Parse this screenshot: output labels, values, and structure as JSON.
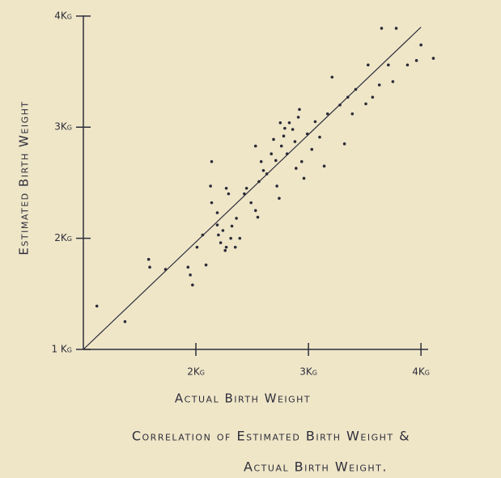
{
  "chart_data": {
    "type": "scatter",
    "title": [
      "Correlation of Estimated Birth Weight &",
      "Actual Birth Weight."
    ],
    "xlabel": "Actual Birth Weight",
    "ylabel": "Estimated Birth Weight",
    "xlim": [
      1,
      4.15
    ],
    "ylim": [
      1,
      4.05
    ],
    "xticks": [
      {
        "value": 2,
        "label": "2Kg"
      },
      {
        "value": 3,
        "label": "3Kg"
      },
      {
        "value": 4,
        "label": "4Kg"
      }
    ],
    "yticks": [
      {
        "value": 1,
        "label": "1 Kg"
      },
      {
        "value": 2,
        "label": "2Kg"
      },
      {
        "value": 3,
        "label": "3Kg"
      },
      {
        "value": 4,
        "label": "4Kg"
      }
    ],
    "reference_line": {
      "x": [
        1,
        4
      ],
      "y": [
        1,
        3.9
      ]
    },
    "color": "#2b2b38",
    "x": [
      1.12,
      1.37,
      1.58,
      1.59,
      1.73,
      1.93,
      1.95,
      1.97,
      2.09,
      2.13,
      2.14,
      2.19,
      2.2,
      2.22,
      2.24,
      2.26,
      2.27,
      2.31,
      2.32,
      2.35,
      2.36,
      2.19,
      2.27,
      2.29,
      2.43,
      2.45,
      2.49,
      2.53,
      2.55,
      2.56,
      2.58,
      2.6,
      2.63,
      2.67,
      2.69,
      2.71,
      2.72,
      2.74,
      2.76,
      2.78,
      2.79,
      2.81,
      2.83,
      2.86,
      2.88,
      2.91,
      2.92,
      2.94,
      2.96,
      2.99,
      3.03,
      3.06,
      3.1,
      3.14,
      3.17,
      3.21,
      3.28,
      3.32,
      3.35,
      3.39,
      3.42,
      3.51,
      3.53,
      3.57,
      3.63,
      3.65,
      3.71,
      3.75,
      3.78,
      3.88,
      3.96,
      4.0,
      4.11,
      2.14,
      2.39,
      2.53,
      2.75,
      2.89,
      2.06,
      2.01
    ],
    "values": [
      1.39,
      1.25,
      1.81,
      1.74,
      1.72,
      1.74,
      1.67,
      1.58,
      1.76,
      2.47,
      2.32,
      2.12,
      2.03,
      1.96,
      2.07,
      1.89,
      1.92,
      2.0,
      2.11,
      1.92,
      2.18,
      2.23,
      2.45,
      2.4,
      2.4,
      2.45,
      2.32,
      2.25,
      2.19,
      2.51,
      2.69,
      2.61,
      2.58,
      2.76,
      2.89,
      2.7,
      2.47,
      2.36,
      2.83,
      2.92,
      2.99,
      2.76,
      3.04,
      2.98,
      2.87,
      3.09,
      3.16,
      2.69,
      2.54,
      2.94,
      2.8,
      3.05,
      2.91,
      2.65,
      3.12,
      3.45,
      3.2,
      2.85,
      3.27,
      3.12,
      3.34,
      3.21,
      3.56,
      3.27,
      3.38,
      3.89,
      3.56,
      3.41,
      3.89,
      3.56,
      3.6,
      3.74,
      3.62,
      2.69,
      2.0,
      2.83,
      3.04,
      2.63,
      2.03,
      1.92
    ]
  }
}
